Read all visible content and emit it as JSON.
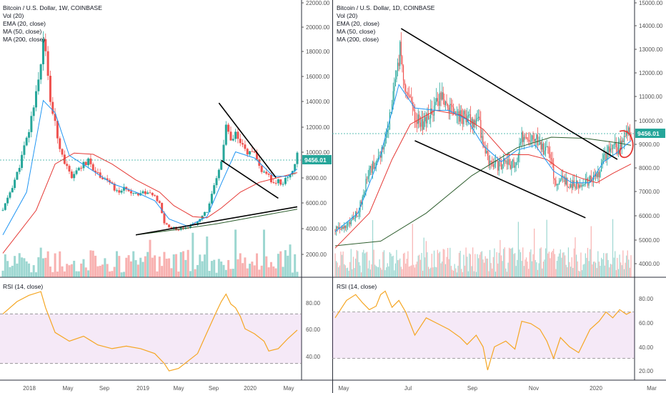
{
  "charts": [
    {
      "id": "left",
      "legend": [
        "Bitcoin / U.S. Dollar, 1W, COINBASE",
        "Vol (20)",
        "EMA (20, close)",
        "MA (50, close)",
        "MA (200, close)"
      ],
      "price_ticks": [
        "22000.00",
        "20000.00",
        "18000.00",
        "16000.00",
        "14000.00",
        "12000.00",
        "10000.00",
        "8000.00",
        "6000.00",
        "4000.00",
        "2000.00"
      ],
      "last_price": "9456.01",
      "rsi_label": "RSI (14, close)",
      "rsi_ticks": [
        "80.00",
        "60.00",
        "40.00"
      ],
      "time_ticks": [
        "2018",
        "May",
        "Sep",
        "2019",
        "May",
        "Sep",
        "2020",
        "May"
      ]
    },
    {
      "id": "right",
      "legend": [
        "Bitcoin / U.S. Dollar, 1D, COINBASE",
        "Vol (20)",
        "EMA (20, close)",
        "MA (50, close)",
        "MA (200, close)"
      ],
      "price_ticks": [
        "15000.00",
        "14000.00",
        "13000.00",
        "12000.00",
        "11000.00",
        "10000.00",
        "9000.00",
        "8000.00",
        "7000.00",
        "6000.00",
        "5000.00",
        "4000.00"
      ],
      "last_price": "9456.01",
      "rsi_label": "RSI (14, close)",
      "rsi_ticks": [
        "80.00",
        "60.00",
        "40.00",
        "20.00"
      ],
      "time_ticks": [
        "May",
        "Jul",
        "Sep",
        "Nov",
        "2020",
        "Mar"
      ]
    }
  ],
  "chart_data": [
    {
      "type": "candlestick",
      "title": "Bitcoin / U.S. Dollar, 1W, COINBASE",
      "ylim": [
        0,
        22000
      ],
      "rsi_ylim": [
        20,
        95
      ],
      "rsi_band": [
        30,
        70
      ],
      "colors": {
        "up": "#26a69a",
        "down": "#ef5350",
        "ema": "#2196f3",
        "ma50": "#e53935",
        "ma200": "#2e5e2e",
        "rsi": "#f5a623",
        "trend": "#000000"
      },
      "price_path": [
        [
          0,
          5000
        ],
        [
          6,
          8000
        ],
        [
          11,
          11500
        ],
        [
          16,
          17000
        ],
        [
          17,
          19500
        ],
        [
          20,
          14000
        ],
        [
          23,
          11000
        ],
        [
          26,
          9000
        ],
        [
          29,
          7500
        ],
        [
          32,
          8500
        ],
        [
          36,
          9000
        ],
        [
          40,
          8000
        ],
        [
          44,
          7500
        ],
        [
          48,
          6500
        ],
        [
          52,
          6800
        ],
        [
          56,
          6400
        ],
        [
          60,
          6500
        ],
        [
          63,
          6300
        ],
        [
          66,
          5500
        ],
        [
          68,
          4000
        ],
        [
          70,
          3600
        ],
        [
          74,
          3500
        ],
        [
          78,
          3700
        ],
        [
          82,
          4000
        ],
        [
          86,
          5000
        ],
        [
          90,
          7500
        ],
        [
          92,
          9000
        ],
        [
          94,
          12000
        ],
        [
          96,
          10500
        ],
        [
          98,
          11200
        ],
        [
          100,
          10400
        ],
        [
          103,
          9800
        ],
        [
          106,
          9500
        ],
        [
          108,
          8600
        ],
        [
          110,
          8000
        ],
        [
          112,
          7700
        ],
        [
          114,
          7200
        ],
        [
          116,
          7400
        ],
        [
          118,
          7200
        ],
        [
          120,
          7800
        ],
        [
          122,
          8300
        ],
        [
          124,
          9456
        ]
      ],
      "ema_path": [
        [
          0,
          3000
        ],
        [
          10,
          6500
        ],
        [
          17,
          14000
        ],
        [
          22,
          13000
        ],
        [
          28,
          9500
        ],
        [
          36,
          8500
        ],
        [
          46,
          7200
        ],
        [
          56,
          6500
        ],
        [
          64,
          5800
        ],
        [
          70,
          4300
        ],
        [
          78,
          3700
        ],
        [
          86,
          4500
        ],
        [
          92,
          7200
        ],
        [
          98,
          9800
        ],
        [
          106,
          9300
        ],
        [
          114,
          7800
        ],
        [
          120,
          7800
        ],
        [
          124,
          8400
        ]
      ],
      "ma50_path": [
        [
          0,
          1500
        ],
        [
          14,
          5000
        ],
        [
          22,
          8800
        ],
        [
          30,
          9700
        ],
        [
          38,
          9600
        ],
        [
          46,
          8800
        ],
        [
          56,
          7500
        ],
        [
          66,
          6500
        ],
        [
          72,
          5400
        ],
        [
          80,
          4500
        ],
        [
          86,
          4400
        ],
        [
          92,
          5200
        ],
        [
          100,
          6500
        ],
        [
          108,
          7300
        ],
        [
          116,
          7700
        ],
        [
          124,
          8100
        ]
      ],
      "ma200_path": [
        [
          56,
          3000
        ],
        [
          72,
          3400
        ],
        [
          90,
          3900
        ],
        [
          104,
          4400
        ],
        [
          124,
          5100
        ]
      ],
      "trendlines": [
        [
          [
            91,
            13800
          ],
          [
            115,
            7700
          ]
        ],
        [
          [
            92,
            9100
          ],
          [
            116,
            6000
          ]
        ],
        [
          [
            56,
            3000
          ],
          [
            124,
            5300
          ]
        ]
      ],
      "rsi_path": [
        [
          0,
          70
        ],
        [
          6,
          80
        ],
        [
          11,
          85
        ],
        [
          16,
          88
        ],
        [
          18,
          75
        ],
        [
          22,
          55
        ],
        [
          28,
          48
        ],
        [
          34,
          52
        ],
        [
          40,
          45
        ],
        [
          46,
          42
        ],
        [
          52,
          44
        ],
        [
          58,
          42
        ],
        [
          64,
          38
        ],
        [
          68,
          30
        ],
        [
          70,
          24
        ],
        [
          74,
          26
        ],
        [
          78,
          32
        ],
        [
          82,
          38
        ],
        [
          86,
          55
        ],
        [
          90,
          72
        ],
        [
          92,
          80
        ],
        [
          94,
          86
        ],
        [
          96,
          78
        ],
        [
          98,
          75
        ],
        [
          100,
          68
        ],
        [
          102,
          58
        ],
        [
          106,
          54
        ],
        [
          110,
          48
        ],
        [
          112,
          40
        ],
        [
          116,
          42
        ],
        [
          120,
          50
        ],
        [
          124,
          57
        ]
      ],
      "volume_range": [
        0,
        2600
      ]
    },
    {
      "type": "candlestick",
      "title": "Bitcoin / U.S. Dollar, 1D, COINBASE",
      "ylim": [
        3500,
        15000
      ],
      "rsi_ylim": [
        15,
        95
      ],
      "rsi_band": [
        30,
        70
      ],
      "colors": {
        "up": "#26a69a",
        "down": "#ef5350",
        "ema": "#2196f3",
        "ma50": "#e53935",
        "ma200": "#2e5e2e",
        "rsi": "#f5a623",
        "trend": "#000000"
      },
      "price_path": [
        [
          0,
          5300
        ],
        [
          10,
          5500
        ],
        [
          20,
          6000
        ],
        [
          30,
          7800
        ],
        [
          40,
          8500
        ],
        [
          46,
          9500
        ],
        [
          54,
          11800
        ],
        [
          57,
          13000
        ],
        [
          60,
          12000
        ],
        [
          64,
          11000
        ],
        [
          70,
          10000
        ],
        [
          78,
          9800
        ],
        [
          88,
          10500
        ],
        [
          92,
          11000
        ],
        [
          100,
          10500
        ],
        [
          108,
          10200
        ],
        [
          116,
          10000
        ],
        [
          126,
          9900
        ],
        [
          134,
          8300
        ],
        [
          142,
          8000
        ],
        [
          150,
          8200
        ],
        [
          158,
          8000
        ],
        [
          164,
          9200
        ],
        [
          170,
          9000
        ],
        [
          176,
          9200
        ],
        [
          182,
          8800
        ],
        [
          188,
          8500
        ],
        [
          194,
          7300
        ],
        [
          200,
          7500
        ],
        [
          206,
          7200
        ],
        [
          212,
          7200
        ],
        [
          218,
          7300
        ],
        [
          224,
          7400
        ],
        [
          230,
          7500
        ],
        [
          236,
          8300
        ],
        [
          240,
          8600
        ],
        [
          244,
          8900
        ],
        [
          248,
          8700
        ],
        [
          252,
          9200
        ],
        [
          256,
          9500
        ],
        [
          260,
          9456
        ]
      ],
      "ema_path": [
        [
          0,
          5200
        ],
        [
          20,
          6000
        ],
        [
          40,
          8500
        ],
        [
          56,
          11500
        ],
        [
          70,
          10500
        ],
        [
          88,
          10400
        ],
        [
          100,
          10400
        ],
        [
          116,
          10000
        ],
        [
          130,
          8900
        ],
        [
          146,
          8200
        ],
        [
          160,
          8700
        ],
        [
          176,
          8900
        ],
        [
          192,
          7800
        ],
        [
          208,
          7300
        ],
        [
          224,
          7300
        ],
        [
          236,
          8200
        ],
        [
          248,
          8600
        ],
        [
          260,
          9100
        ]
      ],
      "ma50_path": [
        [
          0,
          4500
        ],
        [
          30,
          6000
        ],
        [
          50,
          8300
        ],
        [
          66,
          9800
        ],
        [
          88,
          10400
        ],
        [
          110,
          10200
        ],
        [
          130,
          9600
        ],
        [
          150,
          8500
        ],
        [
          170,
          8500
        ],
        [
          186,
          8300
        ],
        [
          200,
          7800
        ],
        [
          216,
          7500
        ],
        [
          230,
          7300
        ],
        [
          244,
          7700
        ],
        [
          260,
          8100
        ]
      ],
      "ma200_path": [
        [
          0,
          4600
        ],
        [
          40,
          4800
        ],
        [
          80,
          6000
        ],
        [
          120,
          7600
        ],
        [
          160,
          8800
        ],
        [
          190,
          9250
        ],
        [
          220,
          9200
        ],
        [
          250,
          9000
        ],
        [
          260,
          8900
        ]
      ],
      "trendlines": [
        [
          [
            58,
            13900
          ],
          [
            248,
            8300
          ]
        ],
        [
          [
            70,
            9100
          ],
          [
            220,
            5800
          ]
        ]
      ],
      "rsi_path": [
        [
          0,
          65
        ],
        [
          10,
          80
        ],
        [
          18,
          85
        ],
        [
          24,
          78
        ],
        [
          30,
          72
        ],
        [
          36,
          75
        ],
        [
          40,
          85
        ],
        [
          44,
          88
        ],
        [
          50,
          74
        ],
        [
          56,
          80
        ],
        [
          62,
          70
        ],
        [
          70,
          50
        ],
        [
          80,
          65
        ],
        [
          90,
          60
        ],
        [
          100,
          55
        ],
        [
          110,
          48
        ],
        [
          116,
          42
        ],
        [
          124,
          50
        ],
        [
          130,
          40
        ],
        [
          134,
          20
        ],
        [
          140,
          40
        ],
        [
          150,
          45
        ],
        [
          158,
          38
        ],
        [
          164,
          62
        ],
        [
          172,
          60
        ],
        [
          180,
          55
        ],
        [
          186,
          45
        ],
        [
          192,
          30
        ],
        [
          198,
          48
        ],
        [
          206,
          40
        ],
        [
          214,
          35
        ],
        [
          224,
          55
        ],
        [
          232,
          62
        ],
        [
          238,
          70
        ],
        [
          244,
          65
        ],
        [
          250,
          72
        ],
        [
          256,
          68
        ],
        [
          260,
          70
        ]
      ],
      "volume_range": [
        0,
        4000
      ]
    }
  ]
}
